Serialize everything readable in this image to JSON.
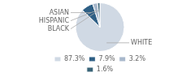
{
  "chart_data": {
    "type": "pie",
    "categories": [
      "WHITE",
      "ASIAN",
      "HISPANIC",
      "BLACK"
    ],
    "values": [
      87.3,
      7.9,
      3.2,
      1.6
    ],
    "value_labels": [
      "87.3%",
      "7.9%",
      "3.2%",
      "1.6%"
    ],
    "colors": [
      "#d0d9e4",
      "#2e5f85",
      "#a8b8cc",
      "#3a6478"
    ],
    "legend": "bottom"
  }
}
